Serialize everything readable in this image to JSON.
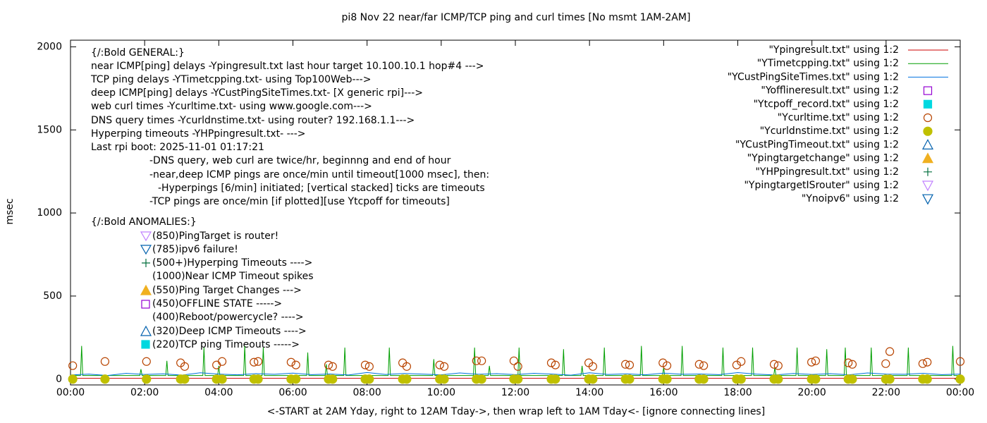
{
  "chart_data": {
    "type": "line",
    "title": "pi8 Nov 22  near/far ICMP/TCP ping and curl times [No msmt 1AM-2AM]",
    "xlabel": "<-START at 2AM Yday, right to 12AM Tday->, then wrap left to 1AM Tday<- [ignore connecting lines]",
    "ylabel": "msec",
    "xlim": [
      0,
      24
    ],
    "ylim": [
      -35,
      2040
    ],
    "xticks": [
      {
        "value": 0,
        "label": "00:00"
      },
      {
        "value": 2,
        "label": "02:00"
      },
      {
        "value": 4,
        "label": "04:00"
      },
      {
        "value": 6,
        "label": "06:00"
      },
      {
        "value": 8,
        "label": "08:00"
      },
      {
        "value": 10,
        "label": "10:00"
      },
      {
        "value": 12,
        "label": "12:00"
      },
      {
        "value": 14,
        "label": "14:00"
      },
      {
        "value": 16,
        "label": "16:00"
      },
      {
        "value": 18,
        "label": "18:00"
      },
      {
        "value": 20,
        "label": "20:00"
      },
      {
        "value": 22,
        "label": "22:00"
      },
      {
        "value": 24,
        "label": "00:00"
      }
    ],
    "yticks": [
      0,
      500,
      1000,
      1500,
      2000
    ],
    "grid": false,
    "legend": "top-right",
    "annotations": [
      "{/:Bold GENERAL:}",
      "near ICMP[ping] delays -Ypingresult.txt last hour target 10.100.10.1 hop#4 --->",
      "TCP ping delays -YTimetcpping.txt- using Top100Web--->",
      "deep ICMP[ping] delays -YCustPingSiteTimes.txt- [X generic rpi]--->",
      "web curl times -Ycurltime.txt- using www.google.com--->",
      "DNS query times -Ycurldnstime.txt- using router? 192.168.1.1--->",
      "Hyperping timeouts -YHPpingresult.txt- --->",
      "Last rpi boot: 2025-11-01 01:17:21",
      "-DNS query, web curl are twice/hr, beginnng and end of hour",
      "-near,deep ICMP pings are once/min until timeout[1000 msec], then:",
      "-Hyperpings [6/min] initiated; [vertical stacked] ticks are timeouts",
      "-TCP pings are once/min [if plotted][use Ytcpoff for timeouts]",
      "{/:Bold ANOMALIES:}",
      "(850)PingTarget is router!",
      "(785)ipv6 failure!",
      "(500+)Hyperping Timeouts ---->",
      "(1000)Near ICMP Timeout spikes",
      "(550)Ping Target Changes --->",
      "(450)OFFLINE STATE ----->",
      "(400)Reboot/powercycle? ---->",
      "(320)Deep ICMP Timeouts ---->",
      "(220)TCP ping Timeouts ----->"
    ],
    "series": [
      {
        "name": "\"Ypingresult.txt\" using 1:2",
        "color": "#cc0000",
        "style": "line",
        "x": [
          0,
          6,
          12,
          18,
          24
        ],
        "values": [
          5,
          5,
          5,
          5,
          5
        ]
      },
      {
        "name": "\"YTimetcpping.txt\" using 1:2",
        "color": "#009e00",
        "style": "line",
        "x": [
          0,
          0.27,
          0.3,
          0.33,
          1.87,
          1.9,
          1.93,
          2.57,
          2.6,
          2.63,
          3.57,
          3.6,
          3.63,
          3.97,
          4.0,
          4.03,
          4.67,
          4.7,
          4.73,
          5.17,
          5.2,
          5.23,
          6.37,
          6.4,
          6.43,
          6.87,
          6.9,
          6.93,
          7.37,
          7.4,
          7.43,
          8.57,
          8.6,
          8.63,
          9.77,
          9.8,
          9.83,
          10.87,
          10.9,
          10.93,
          11.27,
          11.3,
          11.33,
          12.07,
          12.1,
          12.13,
          13.27,
          13.3,
          13.33,
          13.77,
          13.8,
          13.83,
          14.37,
          14.4,
          14.43,
          15.37,
          15.4,
          15.43,
          15.97,
          16.0,
          16.03,
          16.47,
          16.5,
          16.53,
          17.57,
          17.6,
          17.63,
          18.37,
          18.4,
          18.43,
          18.97,
          19.0,
          19.03,
          19.57,
          19.6,
          19.63,
          20.37,
          20.4,
          20.43,
          20.87,
          20.9,
          20.93,
          21.57,
          21.6,
          21.63,
          22.57,
          22.6,
          22.63,
          23.77,
          23.8,
          23.83,
          24
        ],
        "values": [
          22,
          22,
          200,
          22,
          22,
          60,
          22,
          22,
          110,
          22,
          22,
          190,
          22,
          22,
          80,
          22,
          22,
          200,
          22,
          22,
          190,
          22,
          22,
          160,
          22,
          22,
          90,
          22,
          22,
          190,
          22,
          22,
          190,
          22,
          22,
          120,
          22,
          22,
          190,
          22,
          22,
          80,
          22,
          22,
          190,
          22,
          22,
          180,
          22,
          22,
          80,
          22,
          22,
          190,
          22,
          22,
          200,
          22,
          22,
          70,
          22,
          22,
          200,
          22,
          22,
          190,
          22,
          22,
          190,
          22,
          22,
          70,
          22,
          22,
          190,
          22,
          22,
          180,
          22,
          22,
          190,
          22,
          22,
          190,
          22,
          22,
          190,
          22,
          22,
          200,
          22,
          22
        ]
      },
      {
        "name": "\"YCustPingSiteTimes.txt\" using 1:2",
        "color": "#0072e0",
        "style": "line",
        "x": [
          0,
          0.5,
          1,
          1.5,
          2,
          2.5,
          3,
          3.5,
          4,
          4.5,
          5,
          5.5,
          6,
          6.5,
          7,
          7.5,
          8,
          8.5,
          9,
          9.5,
          10,
          10.5,
          11,
          11.5,
          12,
          12.5,
          13,
          13.5,
          14,
          14.5,
          15,
          15.5,
          16,
          16.5,
          17,
          17.5,
          18,
          18.5,
          19,
          19.5,
          20,
          20.5,
          21,
          21.5,
          22,
          22.5,
          23,
          23.5,
          24
        ],
        "values": [
          25,
          30,
          22,
          35,
          28,
          32,
          24,
          38,
          30,
          26,
          33,
          29,
          36,
          27,
          31,
          25,
          40,
          28,
          34,
          30,
          26,
          37,
          29,
          33,
          27,
          35,
          30,
          24,
          38,
          28,
          32,
          26,
          36,
          29,
          31,
          27,
          39,
          30,
          25,
          34,
          28,
          33,
          26,
          37,
          30,
          29,
          35,
          27,
          30
        ]
      },
      {
        "name": "\"Yofflineresult.txt\" using 1:2",
        "color": "#9400d3",
        "style": "square-open",
        "x": [],
        "values": []
      },
      {
        "name": "\"Ytcpoff_record.txt\" using 1:2",
        "color": "#00d8e0",
        "style": "square-filled",
        "x": [],
        "values": []
      },
      {
        "name": "\"Ycurltime.txt\" using 1:2",
        "color": "#b84400",
        "style": "circle-open",
        "x": [
          0.06,
          0.93,
          2.05,
          2.97,
          3.08,
          3.94,
          4.09,
          4.95,
          5.06,
          5.95,
          6.08,
          6.96,
          7.07,
          7.95,
          8.06,
          8.96,
          9.07,
          9.96,
          10.08,
          10.95,
          11.09,
          11.96,
          12.07,
          12.97,
          13.08,
          13.98,
          14.09,
          14.97,
          15.08,
          15.98,
          16.09,
          16.96,
          17.08,
          17.97,
          18.09,
          18.98,
          19.09,
          19.99,
          20.1,
          20.98,
          21.09,
          21.99,
          22.1,
          22.99,
          23.11,
          24.0
        ],
        "values": [
          81,
          106,
          106,
          98,
          76,
          85,
          106,
          102,
          106,
          102,
          85,
          85,
          76,
          85,
          76,
          98,
          76,
          85,
          76,
          110,
          110,
          110,
          76,
          98,
          85,
          98,
          76,
          89,
          85,
          98,
          81,
          89,
          81,
          85,
          106,
          89,
          81,
          102,
          110,
          98,
          89,
          93,
          166,
          93,
          102,
          106
        ]
      },
      {
        "name": "\"Ycurldnstime.txt\" using 1:2",
        "color": "#c0c000",
        "style": "circle-filled",
        "x": [
          0.06,
          0.93,
          2.05,
          2.97,
          3.08,
          3.94,
          4.09,
          4.95,
          5.06,
          5.95,
          6.08,
          6.96,
          7.07,
          7.95,
          8.06,
          8.96,
          9.07,
          9.96,
          10.08,
          10.95,
          11.09,
          11.96,
          12.07,
          12.97,
          13.08,
          13.98,
          14.09,
          14.97,
          15.08,
          15.98,
          16.09,
          16.96,
          17.08,
          17.97,
          18.09,
          18.98,
          19.09,
          19.99,
          20.1,
          20.98,
          21.09,
          21.99,
          22.1,
          22.99,
          23.11,
          24.0
        ],
        "values": [
          0,
          0,
          0,
          0,
          0,
          0,
          0,
          0,
          0,
          0,
          0,
          0,
          0,
          0,
          0,
          0,
          0,
          0,
          0,
          0,
          0,
          0,
          0,
          0,
          0,
          0,
          0,
          0,
          0,
          0,
          0,
          0,
          0,
          0,
          0,
          0,
          0,
          0,
          0,
          0,
          0,
          0,
          0,
          0,
          0,
          0
        ]
      },
      {
        "name": "\"YCustPingTimeout.txt\" using 1:2",
        "color": "#0060ad",
        "style": "triangle-open",
        "x": [],
        "values": []
      },
      {
        "name": "\"Ypingtargetchange\" using 1:2",
        "color": "#f0b020",
        "style": "triangle-filled",
        "x": [],
        "values": []
      },
      {
        "name": "\"YHPpingresult.txt\" using 1:2",
        "color": "#006e3c",
        "style": "plus",
        "x": [],
        "values": []
      },
      {
        "name": "\"YpingtargetISrouter\" using 1:2",
        "color": "#c080ff",
        "style": "triangle-down-open",
        "x": [],
        "values": []
      },
      {
        "name": "\"Ynoipv6\" using 1:2",
        "color": "#0060ad",
        "style": "triangle-down-open",
        "x": [],
        "values": []
      }
    ]
  }
}
